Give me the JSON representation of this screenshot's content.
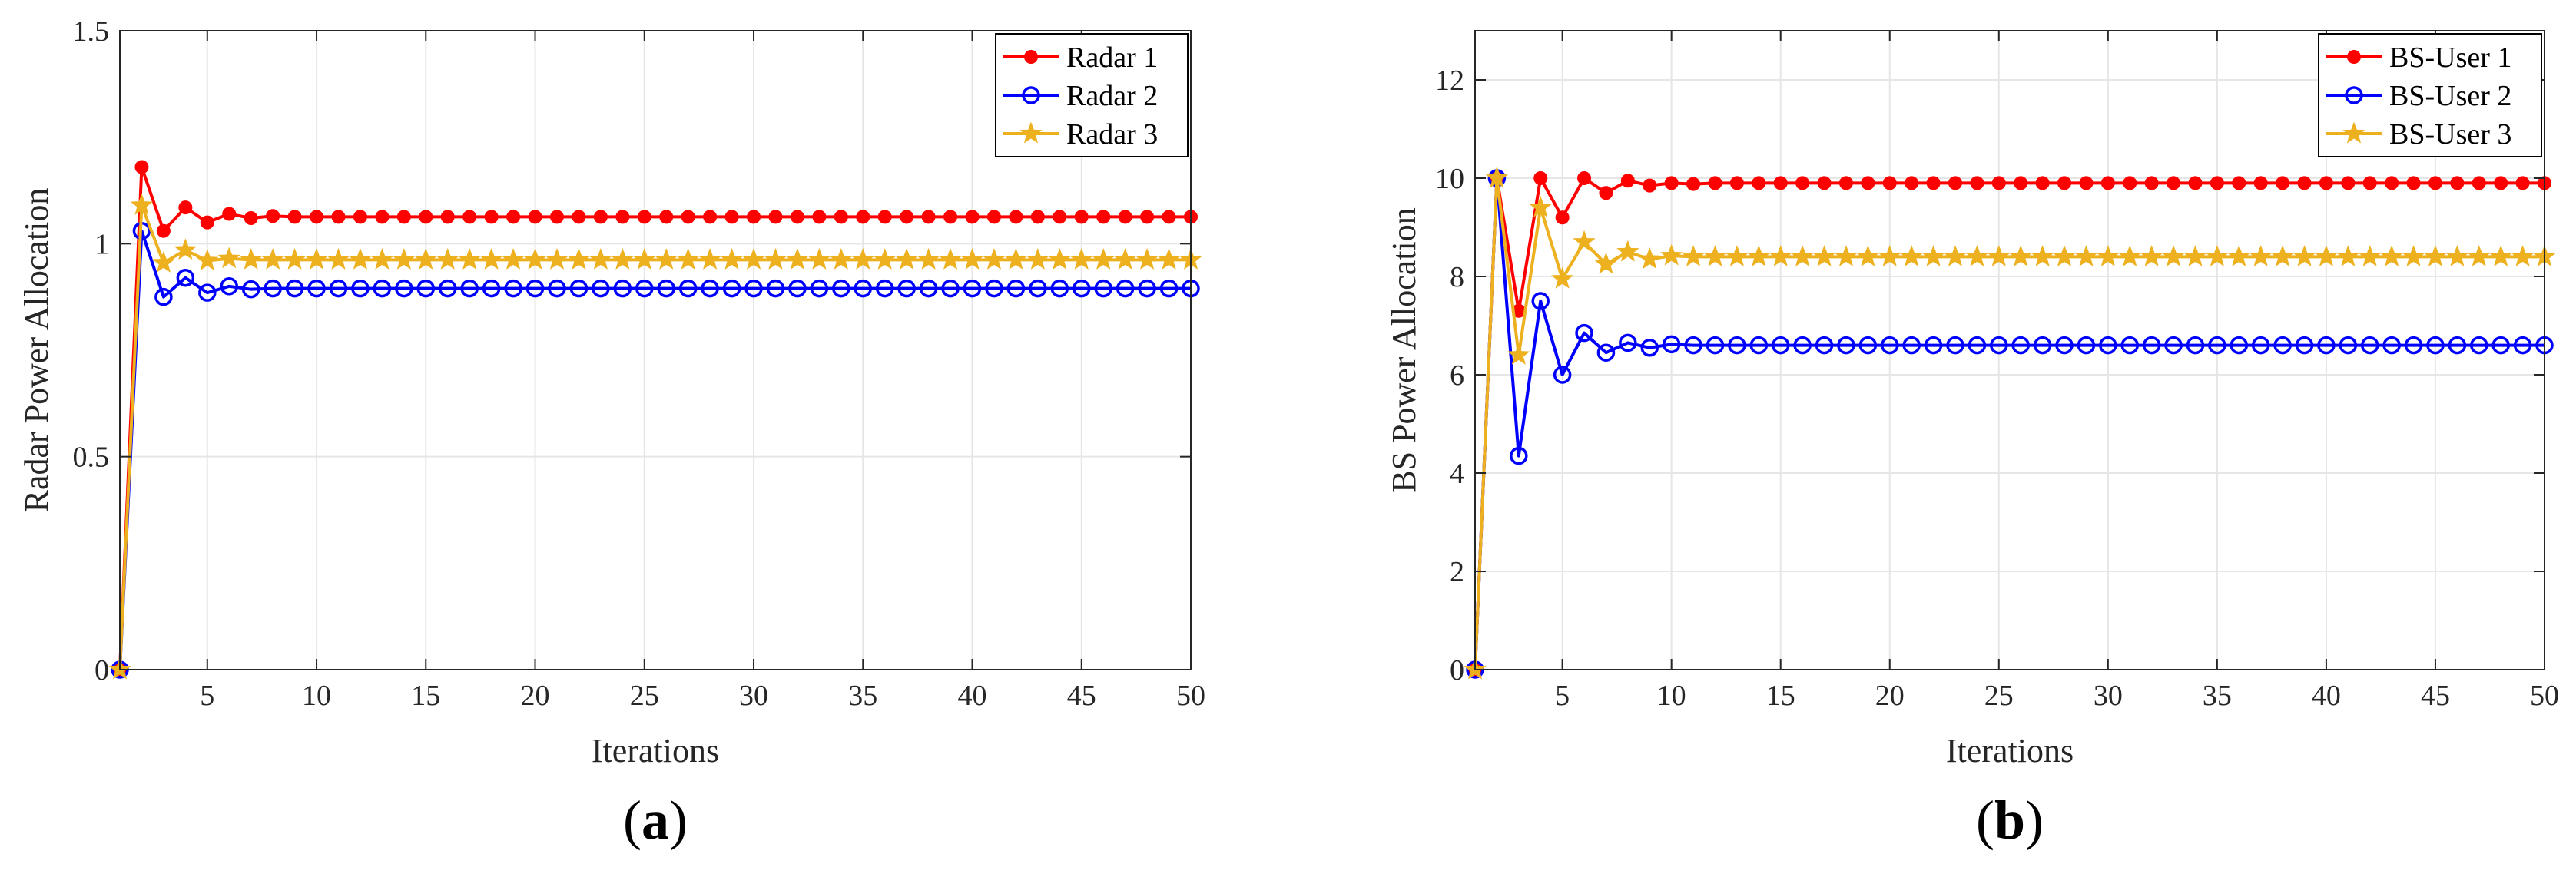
{
  "chart_data": [
    {
      "type": "line",
      "panel_label": "a",
      "title": "",
      "xlabel": "Iterations",
      "ylabel": "Radar Power Allocation",
      "xlim": [
        1,
        50
      ],
      "ylim": [
        0,
        1.5
      ],
      "xticks": [
        5,
        10,
        15,
        20,
        25,
        30,
        35,
        40,
        45,
        50
      ],
      "xtick_labels": [
        "5",
        "10",
        "15",
        "20",
        "25",
        "30",
        "35",
        "40",
        "45",
        "50"
      ],
      "yticks": [
        0,
        0.5,
        1,
        1.5
      ],
      "ytick_labels": [
        "0",
        "0.5",
        "1",
        "1.5"
      ],
      "grid": true,
      "legend_position": "top-right",
      "series": [
        {
          "name": "Radar 1",
          "color": "#ff0000",
          "marker": "filled-circle",
          "values": [
            0,
            1.18,
            1.03,
            1.085,
            1.05,
            1.07,
            1.06,
            1.065,
            1.063,
            1.063,
            1.063,
            1.063,
            1.063,
            1.063,
            1.063,
            1.063,
            1.063,
            1.063,
            1.063,
            1.063,
            1.063,
            1.063,
            1.063,
            1.063,
            1.063,
            1.063,
            1.063,
            1.063,
            1.063,
            1.063,
            1.063,
            1.063,
            1.063,
            1.063,
            1.063,
            1.063,
            1.063,
            1.063,
            1.063,
            1.063,
            1.063,
            1.063,
            1.063,
            1.063,
            1.063,
            1.063,
            1.063,
            1.063,
            1.063,
            1.063
          ]
        },
        {
          "name": "Radar 2",
          "color": "#0000ff",
          "marker": "open-circle",
          "values": [
            0,
            1.03,
            0.875,
            0.92,
            0.885,
            0.9,
            0.893,
            0.895,
            0.895,
            0.895,
            0.895,
            0.895,
            0.895,
            0.895,
            0.895,
            0.895,
            0.895,
            0.895,
            0.895,
            0.895,
            0.895,
            0.895,
            0.895,
            0.895,
            0.895,
            0.895,
            0.895,
            0.895,
            0.895,
            0.895,
            0.895,
            0.895,
            0.895,
            0.895,
            0.895,
            0.895,
            0.895,
            0.895,
            0.895,
            0.895,
            0.895,
            0.895,
            0.895,
            0.895,
            0.895,
            0.895,
            0.895,
            0.895,
            0.895,
            0.895
          ]
        },
        {
          "name": "Radar 3",
          "color": "#edb120",
          "marker": "star",
          "values": [
            0,
            1.09,
            0.955,
            0.985,
            0.96,
            0.965,
            0.962,
            0.962,
            0.962,
            0.962,
            0.962,
            0.962,
            0.962,
            0.962,
            0.962,
            0.962,
            0.962,
            0.962,
            0.962,
            0.962,
            0.962,
            0.962,
            0.962,
            0.962,
            0.962,
            0.962,
            0.962,
            0.962,
            0.962,
            0.962,
            0.962,
            0.962,
            0.962,
            0.962,
            0.962,
            0.962,
            0.962,
            0.962,
            0.962,
            0.962,
            0.962,
            0.962,
            0.962,
            0.962,
            0.962,
            0.962,
            0.962,
            0.962,
            0.962,
            0.962
          ]
        }
      ]
    },
    {
      "type": "line",
      "panel_label": "b",
      "title": "",
      "xlabel": "Iterations",
      "ylabel": "BS Power Allocation",
      "xlim": [
        1,
        50
      ],
      "ylim": [
        0,
        13
      ],
      "xticks": [
        5,
        10,
        15,
        20,
        25,
        30,
        35,
        40,
        45,
        50
      ],
      "xtick_labels": [
        "5",
        "10",
        "15",
        "20",
        "25",
        "30",
        "35",
        "40",
        "45",
        "50"
      ],
      "yticks": [
        0,
        2,
        4,
        6,
        8,
        10,
        12
      ],
      "ytick_labels": [
        "0",
        "2",
        "4",
        "6",
        "8",
        "10",
        "12"
      ],
      "grid": true,
      "legend_position": "top-right",
      "series": [
        {
          "name": "BS-User 1",
          "color": "#ff0000",
          "marker": "filled-circle",
          "values": [
            0,
            10,
            7.3,
            10,
            9.2,
            10,
            9.7,
            9.95,
            9.85,
            9.9,
            9.88,
            9.9,
            9.9,
            9.9,
            9.9,
            9.9,
            9.9,
            9.9,
            9.9,
            9.9,
            9.9,
            9.9,
            9.9,
            9.9,
            9.9,
            9.9,
            9.9,
            9.9,
            9.9,
            9.9,
            9.9,
            9.9,
            9.9,
            9.9,
            9.9,
            9.9,
            9.9,
            9.9,
            9.9,
            9.9,
            9.9,
            9.9,
            9.9,
            9.9,
            9.9,
            9.9,
            9.9,
            9.9,
            9.9,
            9.9
          ]
        },
        {
          "name": "BS-User 2",
          "color": "#0000ff",
          "marker": "open-circle",
          "values": [
            0,
            10,
            4.35,
            7.5,
            6.0,
            6.85,
            6.45,
            6.65,
            6.55,
            6.62,
            6.6,
            6.6,
            6.6,
            6.6,
            6.6,
            6.6,
            6.6,
            6.6,
            6.6,
            6.6,
            6.6,
            6.6,
            6.6,
            6.6,
            6.6,
            6.6,
            6.6,
            6.6,
            6.6,
            6.6,
            6.6,
            6.6,
            6.6,
            6.6,
            6.6,
            6.6,
            6.6,
            6.6,
            6.6,
            6.6,
            6.6,
            6.6,
            6.6,
            6.6,
            6.6,
            6.6,
            6.6,
            6.6,
            6.6,
            6.6
          ]
        },
        {
          "name": "BS-User 3",
          "color": "#edb120",
          "marker": "star",
          "values": [
            0,
            10,
            6.4,
            9.4,
            7.95,
            8.7,
            8.25,
            8.5,
            8.35,
            8.42,
            8.4,
            8.4,
            8.4,
            8.4,
            8.4,
            8.4,
            8.4,
            8.4,
            8.4,
            8.4,
            8.4,
            8.4,
            8.4,
            8.4,
            8.4,
            8.4,
            8.4,
            8.4,
            8.4,
            8.4,
            8.4,
            8.4,
            8.4,
            8.4,
            8.4,
            8.4,
            8.4,
            8.4,
            8.4,
            8.4,
            8.4,
            8.4,
            8.4,
            8.4,
            8.4,
            8.4,
            8.4,
            8.4,
            8.4,
            8.4
          ]
        }
      ]
    }
  ]
}
